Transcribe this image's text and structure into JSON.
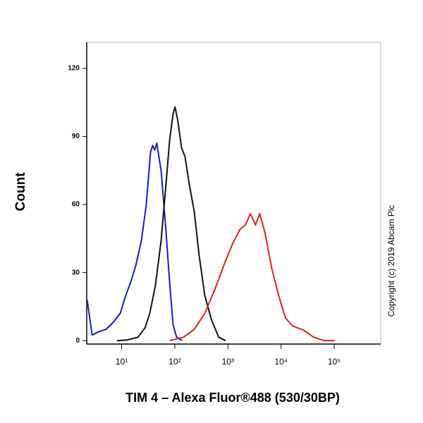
{
  "chart_data": {
    "type": "line",
    "y_label": "Count",
    "x_label": "TIM 4 – Alexa Fluor®488 (530/30BP)",
    "annotation": "Copyright (c) 2019 Abcam Plc",
    "x_scale": "log",
    "xlim": [
      2.2,
      750000
    ],
    "xticks": [
      {
        "value": 10,
        "label": "10¹"
      },
      {
        "value": 100,
        "label": "10²"
      },
      {
        "value": 1000,
        "label": "10³"
      },
      {
        "value": 10000,
        "label": "10⁴"
      },
      {
        "value": 100000,
        "label": "10⁵"
      }
    ],
    "ylim": [
      -1.5,
      131.5
    ],
    "yticks": [
      0,
      30,
      60,
      90,
      120
    ],
    "series": [
      {
        "color": "#1a1acc",
        "x": [
          2.24,
          2.78,
          3.77,
          5.1,
          6.9,
          9.4,
          12,
          14.9,
          18.4,
          23.5,
          29.1,
          34.9,
          38.3,
          42,
          45.9,
          55.2,
          68.3,
          79.6,
          92.7,
          108,
          138
        ],
        "values": [
          18,
          2.5,
          4,
          5,
          8,
          12,
          20,
          26,
          33,
          44,
          60,
          83,
          86,
          84,
          87,
          75,
          48,
          26,
          7,
          1.5,
          0
        ]
      },
      {
        "color": "#111111",
        "x": [
          8.1,
          12.8,
          20.2,
          27.4,
          33.8,
          43,
          55.2,
          68.3,
          79.6,
          92.7,
          101,
          114,
          134,
          156,
          187,
          232,
          286,
          366,
          494,
          670,
          910
        ],
        "values": [
          0,
          0.3,
          1.5,
          5.6,
          12,
          24,
          44,
          69,
          88,
          100,
          103,
          97,
          85,
          81,
          69,
          57,
          38,
          20,
          9,
          1.5,
          0
        ]
      },
      {
        "color": "#e02020",
        "x": [
          79.6,
          146,
          232,
          366,
          577,
          860,
          1240,
          1680,
          2130,
          2650,
          3300,
          3970,
          4920,
          6660,
          8980,
          12100,
          16400,
          26200,
          41200,
          64600,
          102000
        ],
        "values": [
          0,
          1.5,
          5,
          12,
          23,
          34,
          43,
          49,
          51,
          56,
          51,
          56,
          48,
          32,
          20,
          10,
          6.5,
          4.7,
          1.5,
          0,
          0
        ]
      }
    ]
  }
}
